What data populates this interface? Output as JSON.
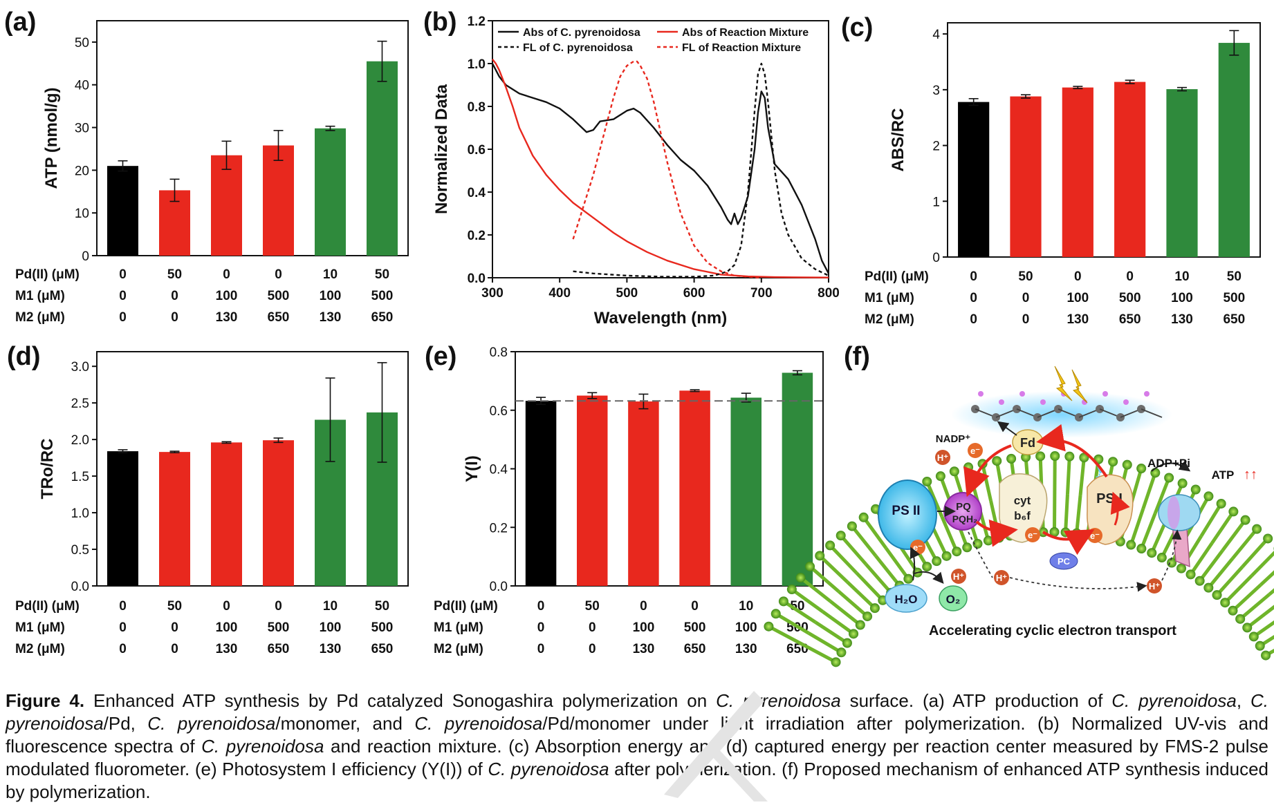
{
  "colors": {
    "black": "#000000",
    "red": "#e8281e",
    "green": "#2f8a3c",
    "dashed_red": "#e8281e"
  },
  "conditions": {
    "row_labels": [
      "Pd(II) (μM)",
      "M1 (μM)",
      "M2 (μM)"
    ],
    "values": [
      [
        "0",
        "50",
        "0",
        "0",
        "10",
        "50"
      ],
      [
        "0",
        "0",
        "100",
        "500",
        "100",
        "500"
      ],
      [
        "0",
        "0",
        "130",
        "650",
        "130",
        "650"
      ]
    ],
    "bar_colors": [
      "black",
      "red",
      "red",
      "red",
      "green",
      "green"
    ]
  },
  "chart_data": [
    {
      "panel": "(a)",
      "type": "bar",
      "ylabel": "ATP (nmol/g)",
      "ylim": [
        0,
        55
      ],
      "yticks": [
        "0",
        "10",
        "20",
        "30",
        "40",
        "50"
      ],
      "values": [
        21,
        15.3,
        23.5,
        25.8,
        29.8,
        45.5
      ],
      "errors": [
        1.2,
        2.6,
        3.3,
        3.5,
        0.5,
        4.7
      ]
    },
    {
      "panel": "(b)",
      "type": "line",
      "xlabel": "Wavelength (nm)",
      "ylabel": "Normalized Data",
      "xlim": [
        300,
        800
      ],
      "ylim": [
        0,
        1.2
      ],
      "xticks": [
        "300",
        "400",
        "500",
        "600",
        "700",
        "800"
      ],
      "yticks": [
        "0.0",
        "0.2",
        "0.4",
        "0.6",
        "0.8",
        "1.0",
        "1.2"
      ],
      "legend": [
        "Abs of C. pyrenoidosa",
        "Abs of Reaction Mixture",
        "FL of C. pyrenoidosa",
        "FL of Reaction Mixture"
      ],
      "series": [
        {
          "name": "Abs of C. pyrenoidosa",
          "style": "solid-black",
          "x": [
            300,
            310,
            320,
            340,
            360,
            380,
            400,
            420,
            440,
            450,
            460,
            480,
            500,
            510,
            520,
            540,
            560,
            580,
            600,
            620,
            640,
            650,
            655,
            660,
            665,
            670,
            680,
            690,
            695,
            700,
            705,
            710,
            720,
            740,
            760,
            780,
            790,
            800
          ],
          "y": [
            1.0,
            0.94,
            0.9,
            0.86,
            0.84,
            0.82,
            0.79,
            0.74,
            0.68,
            0.69,
            0.73,
            0.74,
            0.78,
            0.79,
            0.77,
            0.7,
            0.62,
            0.55,
            0.5,
            0.43,
            0.33,
            0.27,
            0.25,
            0.3,
            0.25,
            0.28,
            0.38,
            0.6,
            0.77,
            0.87,
            0.84,
            0.7,
            0.53,
            0.46,
            0.34,
            0.18,
            0.08,
            0.02
          ]
        },
        {
          "name": "Abs of Reaction Mixture",
          "style": "solid-red",
          "x": [
            300,
            305,
            310,
            320,
            330,
            340,
            360,
            380,
            400,
            420,
            450,
            480,
            500,
            530,
            560,
            600,
            640,
            680,
            720,
            760,
            800
          ],
          "y": [
            1.02,
            1.0,
            0.97,
            0.89,
            0.8,
            0.7,
            0.57,
            0.48,
            0.41,
            0.35,
            0.28,
            0.21,
            0.17,
            0.12,
            0.08,
            0.04,
            0.015,
            0.006,
            0.003,
            0.002,
            0.001
          ]
        },
        {
          "name": "FL of C. pyrenoidosa",
          "style": "dash-black",
          "x": [
            420,
            450,
            500,
            550,
            600,
            630,
            650,
            660,
            670,
            680,
            690,
            695,
            700,
            705,
            710,
            720,
            730,
            740,
            760,
            780,
            800
          ],
          "y": [
            0.03,
            0.02,
            0.01,
            0.005,
            0.005,
            0.01,
            0.03,
            0.06,
            0.15,
            0.4,
            0.78,
            0.95,
            1.0,
            0.95,
            0.82,
            0.5,
            0.3,
            0.2,
            0.09,
            0.04,
            0.01
          ]
        },
        {
          "name": "FL of Reaction Mixture",
          "style": "dash-red",
          "x": [
            420,
            430,
            440,
            450,
            460,
            470,
            480,
            490,
            500,
            510,
            515,
            520,
            530,
            540,
            550,
            560,
            570,
            580,
            600,
            620,
            640,
            660,
            700
          ],
          "y": [
            0.18,
            0.28,
            0.38,
            0.48,
            0.6,
            0.72,
            0.84,
            0.94,
            0.99,
            1.01,
            1.01,
            0.99,
            0.93,
            0.82,
            0.68,
            0.54,
            0.42,
            0.3,
            0.15,
            0.07,
            0.03,
            0.01,
            0.0
          ]
        }
      ]
    },
    {
      "panel": "(c)",
      "type": "bar",
      "ylabel": "ABS/RC",
      "ylim": [
        0,
        4.2
      ],
      "yticks": [
        "0",
        "1",
        "2",
        "3",
        "4"
      ],
      "values": [
        2.78,
        2.88,
        3.04,
        3.14,
        3.01,
        3.84
      ],
      "errors": [
        0.06,
        0.03,
        0.02,
        0.03,
        0.03,
        0.22
      ]
    },
    {
      "panel": "(d)",
      "type": "bar",
      "ylabel": "TRo/RC",
      "ylim": [
        0,
        3.2
      ],
      "yticks": [
        "0.0",
        "0.5",
        "1.0",
        "1.5",
        "2.0",
        "2.5",
        "3.0"
      ],
      "values": [
        1.84,
        1.83,
        1.96,
        1.99,
        2.27,
        2.37
      ],
      "errors": [
        0.02,
        0.01,
        0.01,
        0.03,
        0.57,
        0.68
      ]
    },
    {
      "panel": "(e)",
      "type": "bar",
      "ylabel": "Y(I)",
      "ylim": [
        0,
        0.8
      ],
      "yticks": [
        "0.0",
        "0.2",
        "0.4",
        "0.6",
        "0.8"
      ],
      "values": [
        0.632,
        0.65,
        0.63,
        0.667,
        0.643,
        0.728
      ],
      "errors": [
        0.012,
        0.01,
        0.025,
        0.003,
        0.015,
        0.007
      ],
      "reference_line": 0.632
    }
  ],
  "mechanism": {
    "panel": "(f)",
    "title": "Accelerating cyclic electron transport",
    "labels": {
      "nadp": "NADP⁺",
      "fd": "Fd",
      "ps1": "PS I",
      "ps2": "PS II",
      "pq": "PQ",
      "pqh2": "PQH₂",
      "cyt": "cyt",
      "b6f": "b₆f",
      "pc": "PC",
      "h2o": "H₂O",
      "o2": "O₂",
      "adp": "ADP+Pi",
      "atp": "ATP",
      "atp_arrows": "↑↑",
      "e": "e⁻",
      "h": "H⁺"
    }
  },
  "caption": {
    "fig": "Figure 4.",
    "parts": [
      {
        "t": " Enhanced ATP synthesis by Pd catalyzed Sonogashira polymerization on "
      },
      {
        "i": "C. pyrenoidosa"
      },
      {
        "t": " surface. (a) ATP production of "
      },
      {
        "i": "C. pyrenoidosa"
      },
      {
        "t": ", "
      },
      {
        "i": "C. pyrenoidosa"
      },
      {
        "t": "/Pd, "
      },
      {
        "i": "C. pyrenoidosa"
      },
      {
        "t": "/monomer, and "
      },
      {
        "i": "C. pyrenoidosa"
      },
      {
        "t": "/Pd/monomer under light irradiation after polymerization. (b) Normalized UV-vis and fluorescence spectra of "
      },
      {
        "i": "C. pyrenoidosa"
      },
      {
        "t": " and reaction mixture. (c) Absorption energy and (d) captured energy per reaction center measured by FMS-2 pulse modulated fluorometer. (e) Photosystem I efficiency (Y(I)) of "
      },
      {
        "i": "C. pyrenoidosa"
      },
      {
        "t": " after polymerization. (f) Proposed mechanism of enhanced ATP synthesis induced by polymerization."
      }
    ]
  }
}
